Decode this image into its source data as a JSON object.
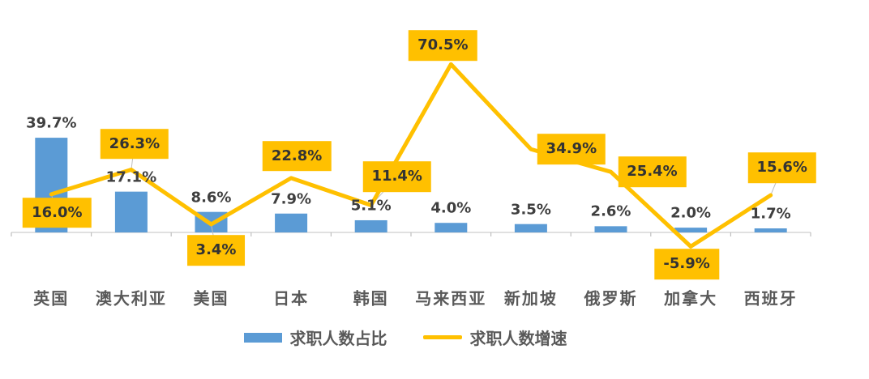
{
  "chart_data": {
    "type": "bar",
    "subtype": "combo-bar-line",
    "title": "",
    "xlabel": "",
    "ylabel": "",
    "ylim": [
      -10,
      80
    ],
    "grid": false,
    "legend_position": "bottom",
    "categories": [
      "英国",
      "澳大利亚",
      "美国",
      "日本",
      "韩国",
      "马来西亚",
      "新加坡",
      "俄罗斯",
      "加拿大",
      "西班牙"
    ],
    "series": [
      {
        "name": "求职人数占比",
        "type": "bar",
        "color": "#5B9BD5",
        "values": [
          39.7,
          17.1,
          8.6,
          7.9,
          5.1,
          4.0,
          3.5,
          2.6,
          2.0,
          1.7
        ],
        "data_labels": [
          "39.7%",
          "17.1%",
          "8.6%",
          "7.9%",
          "5.1%",
          "4.0%",
          "3.5%",
          "2.6%",
          "2.0%",
          "1.7%"
        ],
        "data_label_style": "plain-bold-above-bar"
      },
      {
        "name": "求职人数增速",
        "type": "line",
        "color": "#FFC000",
        "values": [
          16.0,
          26.3,
          3.4,
          22.8,
          11.4,
          70.5,
          34.9,
          25.4,
          -5.9,
          15.6
        ],
        "data_labels": [
          "16.0%",
          "26.3%",
          "3.4%",
          "22.8%",
          "11.4%",
          "70.5%",
          "34.9%",
          "25.4%",
          "-5.9%",
          "15.6%"
        ],
        "data_label_style": "gold-filled-box"
      }
    ],
    "colors": {
      "bar_fill": "#5B9BD5",
      "line_stroke": "#FFC000",
      "label_box_fill": "#FFC000",
      "bar_label_text": "#3f3f3f",
      "box_label_text": "#333333",
      "axis_line": "#d6d6d6",
      "tick_mark": "#bfbfbf",
      "axis_label_text": "#595959",
      "background": "#ffffff"
    }
  }
}
